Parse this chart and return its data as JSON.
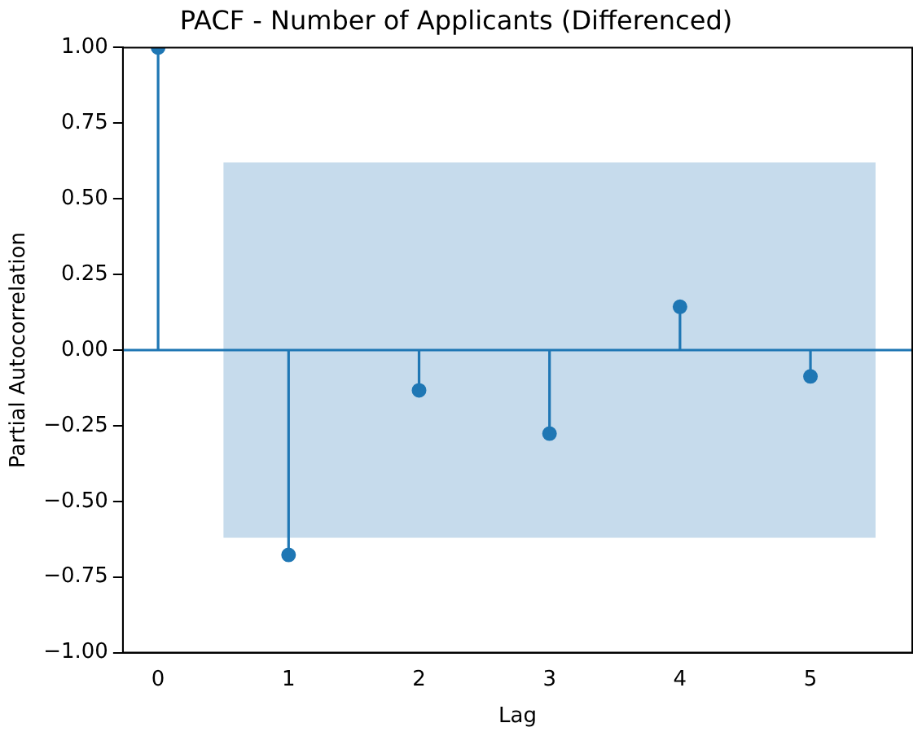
{
  "chart_data": {
    "type": "lollipop",
    "title": "PACF - Number of Applicants (Differenced)",
    "xlabel": "Lag",
    "ylabel": "Partial Autocorrelation",
    "x": [
      0,
      1,
      2,
      3,
      4,
      5
    ],
    "series": [
      {
        "color": "#1f77b4",
        "values": [
          1.0,
          -0.677,
          -0.133,
          -0.276,
          0.143,
          -0.087
        ]
      },
      {
        "type": "area",
        "color": "#c6dbec",
        "x": [
          0.5,
          5.5
        ],
        "values": [
          null,
          null
        ],
        "lower": [
          -0.62,
          -0.62
        ],
        "upper": [
          0.62,
          0.62
        ]
      }
    ],
    "ref_lines": [
      {
        "axis": "y",
        "value": 0,
        "color": "#1f77b4"
      }
    ],
    "marker": "circle",
    "grid": false,
    "legend": false,
    "xlim": [
      -0.27,
      5.78
    ],
    "xticks": [
      0,
      1,
      2,
      3,
      4,
      5
    ],
    "ylim": [
      -1,
      1
    ],
    "yticks": [
      {
        "value": -1,
        "label": "−1.00"
      },
      {
        "value": -0.75,
        "label": "−0.75"
      },
      {
        "value": -0.5,
        "label": "−0.50"
      },
      {
        "value": -0.25,
        "label": "−0.25"
      },
      {
        "value": 0,
        "label": "0.00"
      },
      {
        "value": 0.25,
        "label": "0.25"
      },
      {
        "value": 0.5,
        "label": "0.50"
      },
      {
        "value": 0.75,
        "label": "0.75"
      },
      {
        "value": 1,
        "label": "1.00"
      }
    ]
  }
}
